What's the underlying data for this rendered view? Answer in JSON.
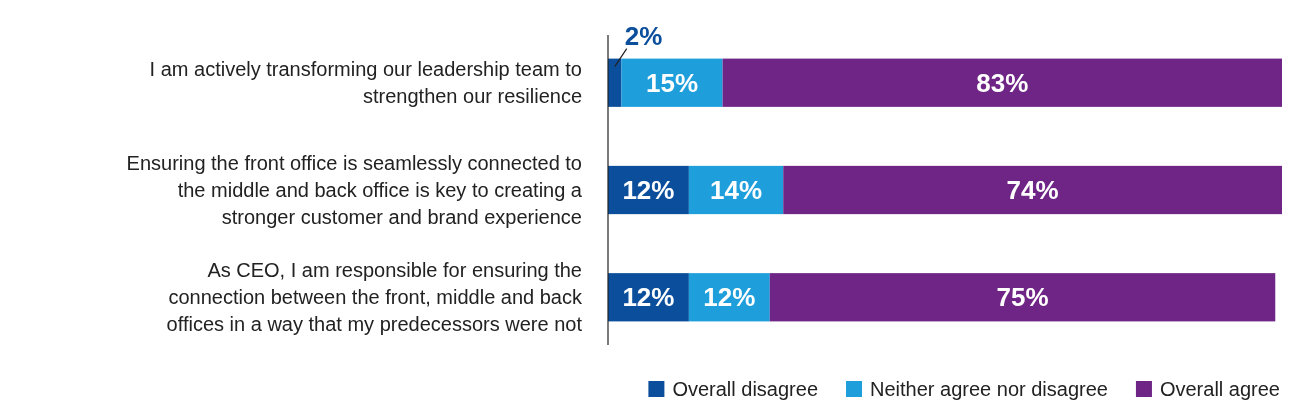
{
  "chart_data": {
    "type": "bar",
    "orientation": "horizontal",
    "stacked": true,
    "xlim": [
      0,
      100
    ],
    "tick_labels": "y",
    "categories": [
      "I am actively transforming our leadership team to strengthen our resilience",
      "Ensuring the front office is seamlessly connected to the middle and back office is key to creating a stronger customer and brand experience",
      "As CEO, I am responsible for ensuring the connection between the front, middle and back offices in a way that my predecessors were not"
    ],
    "series": [
      {
        "name": "Overall disagree",
        "color": "#0b4f9c",
        "values": [
          2,
          12,
          12
        ],
        "value_labels": [
          "2%",
          "12%",
          "12%"
        ]
      },
      {
        "name": "Neither agree nor disagree",
        "color": "#1e9fdc",
        "values": [
          15,
          14,
          12
        ],
        "value_labels": [
          "15%",
          "14%",
          "12%"
        ]
      },
      {
        "name": "Overall agree",
        "color": "#6e2585",
        "values": [
          83,
          74,
          75
        ],
        "value_labels": [
          "83%",
          "74%",
          "75%"
        ]
      }
    ],
    "legend": "bottom right"
  }
}
